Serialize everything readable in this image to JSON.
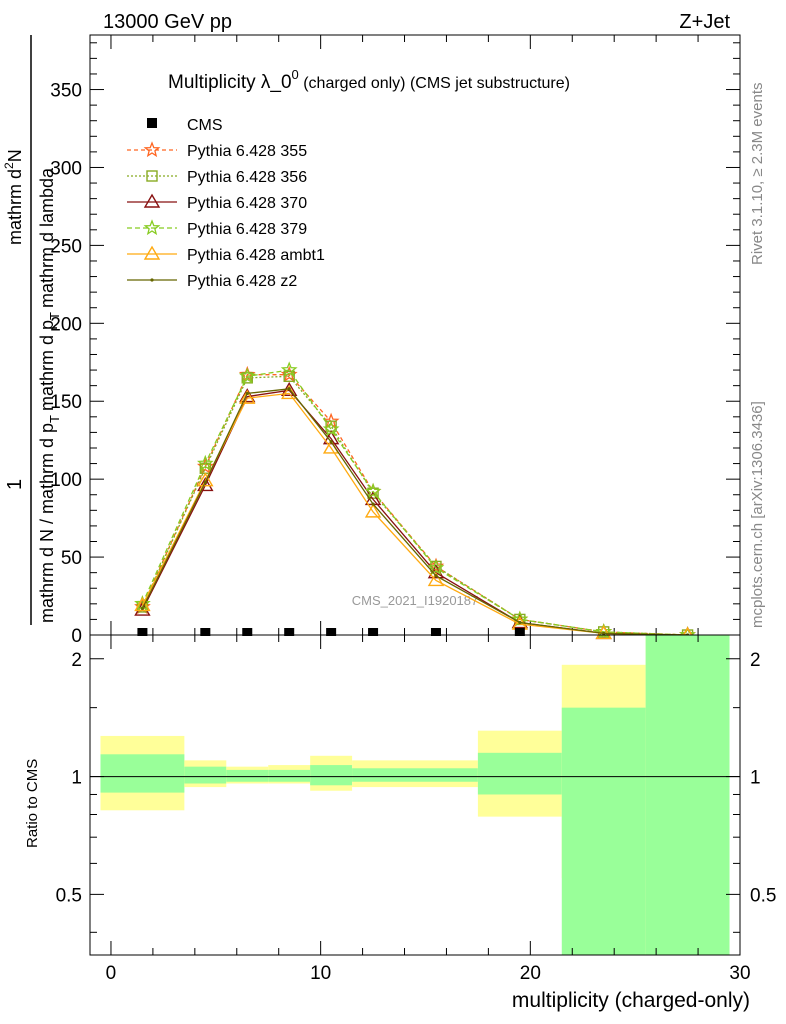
{
  "header": {
    "energy_label": "13000 GeV pp",
    "process_label": "Z+Jet"
  },
  "side_labels": {
    "rivet": "Rivet 3.1.10, ≥ 2.3M events",
    "mcplots": "mcplots.cern.ch [arXiv:1306.3436]"
  },
  "watermark": "CMS_2021_I1920187",
  "chart_data": [
    {
      "type": "line",
      "title_main": "Multiplicity λ_0",
      "title_sup": "0",
      "title_rest": " (charged only) (CMS jet substructure)",
      "ylabel_num": "1",
      "ylabel_den": "mathrm d N / mathrm d p",
      "ylabel_den_sub": "T",
      "ylabel_den2": "mathrm d p",
      "ylabel_den2_sub": "T",
      "ylabel_den3": "mathrm d lambda",
      "ylabel_extra_num": "mathrm d",
      "ylabel_extra_sup": "2",
      "ylabel_extra_N": "N",
      "xlim": [
        -1,
        30
      ],
      "ylim": [
        0,
        385
      ],
      "y_ticks": [
        0,
        50,
        100,
        150,
        200,
        250,
        300,
        350
      ],
      "y_tick_labels": [
        "0",
        "50",
        "100",
        "150",
        "200",
        "250",
        "300",
        "350"
      ],
      "x": [
        1.5,
        4.5,
        6.5,
        8.5,
        10.5,
        12.5,
        15.5,
        19.5,
        23.5,
        27.5
      ],
      "cms_points": [
        1.5,
        4.5,
        6.5,
        8.5,
        10.5,
        12.5,
        15.5,
        19.5
      ],
      "cms_y": [
        0,
        0,
        0,
        0,
        0,
        0,
        0,
        0
      ],
      "series": [
        {
          "name": "Pythia 6.428 355",
          "color": "#ff6622",
          "dash": "4,3",
          "marker": "star",
          "values": [
            18,
            108,
            167,
            167,
            137,
            92,
            44,
            10,
            2,
            0
          ]
        },
        {
          "name": "Pythia 6.428 356",
          "color": "#88aa22",
          "dash": "2,2",
          "marker": "square",
          "values": [
            18,
            107,
            165,
            166,
            134,
            91,
            44,
            10,
            2,
            0
          ]
        },
        {
          "name": "Pythia 6.428 370",
          "color": "#881111",
          "dash": "",
          "marker": "triangle",
          "values": [
            16,
            96,
            153,
            157,
            126,
            87,
            40,
            8,
            1,
            0
          ]
        },
        {
          "name": "Pythia 6.428 379",
          "color": "#88cc22",
          "dash": "5,3",
          "marker": "star",
          "values": [
            20,
            110,
            166,
            170,
            132,
            92,
            43,
            10,
            2,
            0
          ]
        },
        {
          "name": "Pythia 6.428 ambt1",
          "color": "#ffaa11",
          "dash": "",
          "marker": "triangle",
          "values": [
            19,
            99,
            152,
            155,
            120,
            79,
            35,
            7,
            1,
            0
          ]
        },
        {
          "name": "Pythia 6.428 z2",
          "color": "#666600",
          "dash": "",
          "marker": "dot",
          "values": [
            17,
            98,
            155,
            158,
            124,
            84,
            38,
            8,
            1,
            0
          ]
        }
      ],
      "legend_data_label": "CMS"
    },
    {
      "type": "area",
      "ylabel": "Ratio to CMS",
      "xlabel": "multiplicity (charged-only)",
      "xlim": [
        -1,
        30
      ],
      "ylim": [
        0.35,
        2.3
      ],
      "y_scale": "log",
      "y_ticks": [
        0.5,
        1,
        2
      ],
      "y_tick_labels": [
        "0.5",
        "1",
        "2"
      ],
      "x_ticks": [
        0,
        10,
        20,
        30
      ],
      "x_tick_labels": [
        "0",
        "10",
        "20",
        "30"
      ],
      "bins": [
        {
          "x0": -0.5,
          "x1": 3.5,
          "g_lo": 0.91,
          "g_hi": 1.14,
          "y_lo": 0.82,
          "y_hi": 1.27
        },
        {
          "x0": 3.5,
          "x1": 5.5,
          "g_lo": 0.96,
          "g_hi": 1.06,
          "y_lo": 0.94,
          "y_hi": 1.1
        },
        {
          "x0": 5.5,
          "x1": 7.5,
          "g_lo": 0.97,
          "g_hi": 1.04,
          "y_lo": 0.96,
          "y_hi": 1.06
        },
        {
          "x0": 7.5,
          "x1": 9.5,
          "g_lo": 0.97,
          "g_hi": 1.04,
          "y_lo": 0.96,
          "y_hi": 1.07
        },
        {
          "x0": 9.5,
          "x1": 11.5,
          "g_lo": 0.95,
          "g_hi": 1.07,
          "y_lo": 0.92,
          "y_hi": 1.13
        },
        {
          "x0": 11.5,
          "x1": 17.5,
          "g_lo": 0.97,
          "g_hi": 1.05,
          "y_lo": 0.94,
          "y_hi": 1.1
        },
        {
          "x0": 17.5,
          "x1": 21.5,
          "g_lo": 0.9,
          "g_hi": 1.15,
          "y_lo": 0.79,
          "y_hi": 1.31
        },
        {
          "x0": 21.5,
          "x1": 25.5,
          "g_lo": 0.35,
          "g_hi": 1.5,
          "y_lo": 0.55,
          "y_hi": 1.93
        },
        {
          "x0": 25.5,
          "x1": 29.5,
          "g_lo": 0.35,
          "g_hi": 2.3,
          "y_lo": 0.35,
          "y_hi": 2.3
        }
      ]
    }
  ]
}
